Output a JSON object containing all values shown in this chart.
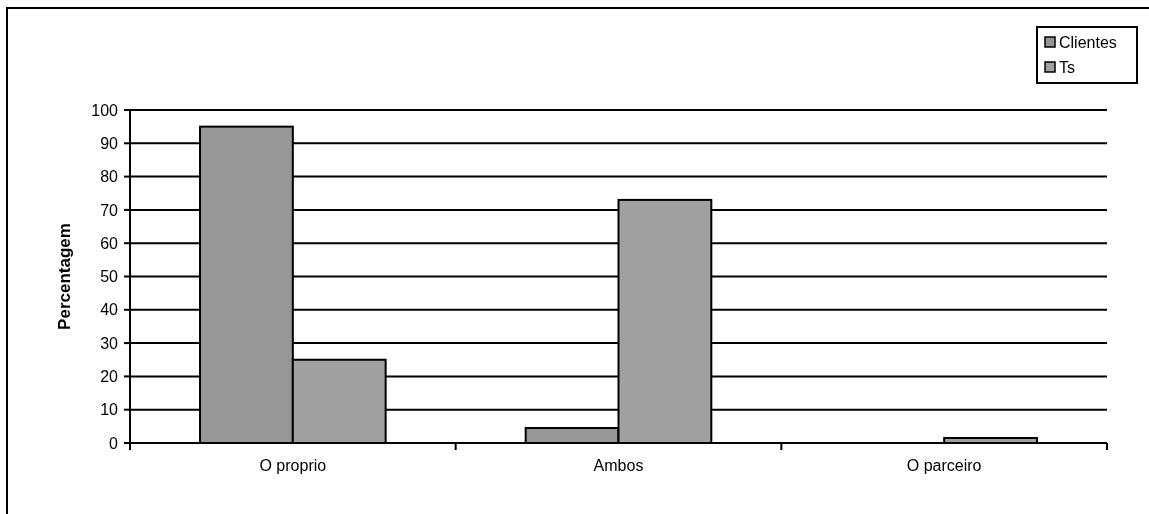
{
  "chart_data": {
    "type": "bar",
    "ylabel": "Percentagem",
    "categories": [
      "O proprio",
      "Ambos",
      "O parceiro"
    ],
    "series": [
      {
        "name": "Clientes",
        "color": "#969696",
        "values": [
          95,
          4.5,
          0
        ]
      },
      {
        "name": "Ts",
        "color": "#a0a0a0",
        "values": [
          25,
          73,
          1.5
        ]
      }
    ],
    "ylim": [
      0,
      100
    ],
    "yticks": [
      0,
      10,
      20,
      30,
      40,
      50,
      60,
      70,
      80,
      90,
      100
    ],
    "grid": "y",
    "legend": "top right"
  }
}
